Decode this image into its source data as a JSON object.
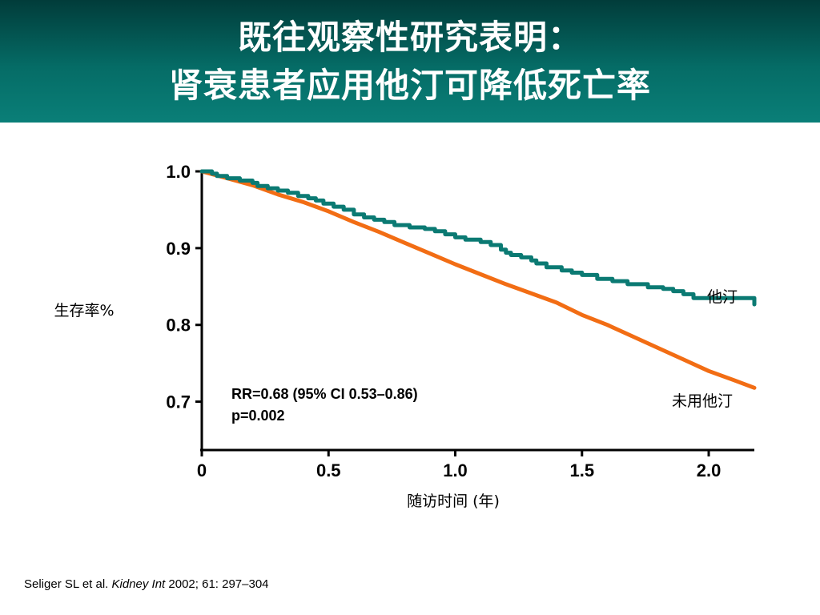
{
  "header": {
    "title_line1": "既往观察性研究表明：",
    "title_line2": "肾衰患者应用他汀可降低死亡率"
  },
  "colors": {
    "statin": "#0b7a73",
    "no_statin": "#f26d14",
    "header_bg": "#056c66"
  },
  "chart_data": {
    "type": "line",
    "xlabel": "随访时间 (年)",
    "ylabel": "生存率%",
    "xlim": [
      0,
      2.18
    ],
    "ylim": [
      0.637,
      1.0
    ],
    "x_ticks": [
      0,
      0.5,
      1.0,
      1.5,
      2.0
    ],
    "x_tick_labels": [
      "0",
      "0.5",
      "1.0",
      "1.5",
      "2.0"
    ],
    "y_ticks": [
      1.0,
      0.9,
      0.8,
      0.7
    ],
    "y_tick_labels": [
      "1.0",
      "0.9",
      "0.8",
      "0.7"
    ],
    "annotation_line1": "RR=0.68 (95% CI 0.53–0.86)",
    "annotation_line2": "p=0.002",
    "series": [
      {
        "name": "他汀",
        "color": "#0b7a73",
        "step": true,
        "x": [
          0,
          0.04,
          0.06,
          0.1,
          0.15,
          0.2,
          0.22,
          0.26,
          0.3,
          0.34,
          0.38,
          0.42,
          0.45,
          0.48,
          0.52,
          0.56,
          0.6,
          0.64,
          0.68,
          0.72,
          0.76,
          0.82,
          0.88,
          0.92,
          0.96,
          1.0,
          1.04,
          1.1,
          1.14,
          1.18,
          1.2,
          1.22,
          1.26,
          1.3,
          1.32,
          1.36,
          1.42,
          1.46,
          1.5,
          1.56,
          1.62,
          1.68,
          1.76,
          1.82,
          1.86,
          1.9,
          1.94,
          2.18
        ],
        "y": [
          1.0,
          0.997,
          0.994,
          0.991,
          0.988,
          0.985,
          0.981,
          0.978,
          0.975,
          0.972,
          0.968,
          0.965,
          0.962,
          0.958,
          0.954,
          0.95,
          0.944,
          0.94,
          0.937,
          0.934,
          0.93,
          0.927,
          0.925,
          0.922,
          0.918,
          0.914,
          0.911,
          0.908,
          0.904,
          0.898,
          0.894,
          0.891,
          0.888,
          0.884,
          0.88,
          0.875,
          0.871,
          0.868,
          0.865,
          0.86,
          0.857,
          0.853,
          0.849,
          0.847,
          0.844,
          0.84,
          0.835,
          0.832
        ]
      },
      {
        "name": "未用他汀",
        "color": "#f26d14",
        "step": false,
        "x": [
          0,
          0.1,
          0.2,
          0.3,
          0.4,
          0.5,
          0.6,
          0.7,
          0.8,
          0.9,
          1.0,
          1.1,
          1.2,
          1.3,
          1.4,
          1.5,
          1.6,
          1.7,
          1.8,
          1.9,
          2.0,
          2.1,
          2.18
        ],
        "y": [
          1.0,
          0.991,
          0.982,
          0.97,
          0.96,
          0.948,
          0.934,
          0.921,
          0.907,
          0.893,
          0.879,
          0.866,
          0.853,
          0.841,
          0.829,
          0.813,
          0.8,
          0.785,
          0.77,
          0.755,
          0.74,
          0.728,
          0.718
        ]
      }
    ]
  },
  "citation": {
    "authors": "Seliger SL et al. ",
    "journal": "Kidney Int",
    "details": " 2002; 61: 297–304"
  }
}
